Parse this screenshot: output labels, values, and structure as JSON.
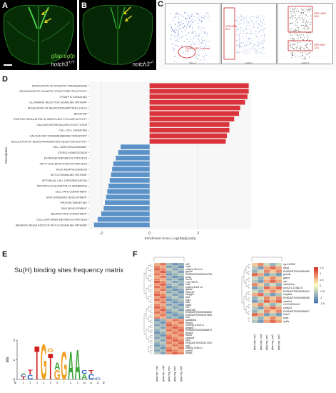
{
  "panel_a": {
    "letter": "A",
    "line1": "gfap:egfp",
    "line2": "notch3",
    "sup": "+/+"
  },
  "panel_b": {
    "letter": "B",
    "line1": "notch3",
    "sup": "-/-"
  },
  "panel_c": {
    "letter": "C",
    "gate1": "FSC-A, SSC-A subset",
    "gate1_val": "73",
    "gate2": "GFP-NEG",
    "gate2_val": "36.3",
    "gate3": "GFP-HIGH",
    "gate3_val": "18.4",
    "gate4": "GFP-NEG",
    "gate4_val": "12.5",
    "axis_x1": "FSC-A",
    "axis_x2": "eGFP-A",
    "axis_x3": "eGFP-A",
    "axis_y1": "SSC-A",
    "axis_y3": "DAPI-A"
  },
  "panel_d": {
    "letter": "D",
    "ylabel": "Description",
    "xlabel": "Enrichment score (-Log10(adj pval))",
    "colors": {
      "up": "#d9343b",
      "down": "#5b92c8"
    },
    "chart_data": {
      "type": "bar",
      "categories": [
        "MODULATION OF SYNAPTIC TRANSMISSION",
        "REGULATION OF SYNAPTIC STRUCTURE OR ACTIVITY",
        "SYNAPTIC SIGNALING",
        "GLUTAMATE RECEPTOR SIGNALING PATHWAY",
        "REGULATION OF NEUROTRANSMITTER LEVELS",
        "BEHAVIOR",
        "POSITIVE REGULATION OF ADENYLATE CYCLASE ACTIVITY",
        "CALCIUM ION REGULATED EXOCYTOSIS",
        "CELL-CELL SIGNALING",
        "CALCIUM ION TRANSMEMBRANE TRANSPORT",
        "REGULATION OF NEUROTRANSMITTER RECEPTOR ACTIVITY",
        "CELL JUNCTION ASSEMBLY",
        "STEROL HOMEOSTASIS",
        "ESTROGEN METABOLIC PROCESS",
        "FATTY ACID BIOSYNTHETIC PROCESS",
        "AXON MORPHOGENESIS",
        "NOTCH SIGNALING PATHWAY",
        "EPITHELIAL CELL DIFFERENTIATION",
        "PROTEIN LOCALIZATION TO MEMBRANE",
        "CELL FATE COMMITMENT",
        "SKIN EPIDERMIS DEVELOPMENT",
        "PROTEIN TARGETING",
        "SKIN DEVELOPMENT",
        "NEURON FATE COMMITMENT",
        "CELLULAR AMIDE METABOLIC PROCESS",
        "NEGATIVE REGULATION OF NOTCH SIGNALING PATHWAY"
      ],
      "values": [
        4.1,
        4.1,
        4.05,
        3.95,
        3.75,
        3.7,
        3.5,
        3.3,
        3.3,
        3.2,
        3.15,
        -1.2,
        -1.3,
        -1.4,
        -1.5,
        -1.55,
        -1.6,
        -1.65,
        -1.7,
        -1.75,
        -1.8,
        -1.85,
        -1.9,
        -2.0,
        -2.15,
        -2.3
      ],
      "xlim": [
        -2.5,
        4.2
      ],
      "xticks": [
        "-2",
        "0",
        "2"
      ],
      "xtick_values": [
        -2,
        0,
        2
      ]
    }
  },
  "panel_e": {
    "letter": "E",
    "title": "Su(H) binding sites frequency matrix",
    "ylabel": "bits",
    "yticks": [
      "2",
      "1",
      "0"
    ],
    "positions": [
      "1",
      "2",
      "3",
      "4",
      "5",
      "6",
      "7",
      "8",
      "9",
      "10",
      "11",
      "12"
    ],
    "five": "5'",
    "three": "3'"
  },
  "panel_f": {
    "letter": "F",
    "left_genes": [
      "lrrf2",
      "roadr",
      "si:dkey-21h14.4",
      "gap1a",
      "ENSDART00000154798",
      "tnnc1",
      "lmo7b",
      "LOC796771",
      "ext2",
      "si:dkey-6n21.13",
      "tgfb2a",
      "tmem79",
      "rasgrp3",
      "tab1",
      "ripk1",
      "fosb",
      "fosab",
      "nrf1",
      "camk1db",
      "ENSDART00000055552",
      "ENSDART00000017808",
      "mcu",
      "gadd45ba",
      "tm4sf4",
      "si:ch211-57n21.3",
      "arhgef2",
      "ENSDART00000086975",
      "grnp44",
      "ccnd1",
      "neurod4",
      "rgs2",
      "ENSDART00000147202",
      "rgd2",
      "si:dkey-218e3.1",
      "prdm9",
      "ptmab"
    ],
    "right_genes": [
      "rgc.111983",
      "fabp1",
      "ENSDART00000050459",
      "gnmdb",
      "gabrd",
      "cyb",
      "camk2n1a",
      "si:ch211-113g11.6",
      "ENSDART00000024613",
      "map1ab",
      "ENSDART00000058435",
      "camk2a",
      "LOC100911412",
      "camk2d",
      "ENSDART00000099657",
      "insm2",
      "stum",
      "cpt2a"
    ],
    "left_cols": [
      "gfap high_rep1",
      "gfap high_rep2",
      "gfap neg_rep1",
      "gfap neg_rep2",
      "gfap neg_rep3"
    ],
    "right_cols": [
      "gfap high_rep1",
      "gfap high_rep2",
      "gfap neg_rep1",
      "gfap neg_rep2",
      "gfap neg_rep3"
    ],
    "legend_ticks": [
      "1.5",
      "1",
      "0.5",
      "0",
      "-0.5",
      "-1",
      "-1.5"
    ],
    "colors": {
      "high": "#d73027",
      "mid": "#fee090",
      "low": "#4575b4"
    }
  }
}
